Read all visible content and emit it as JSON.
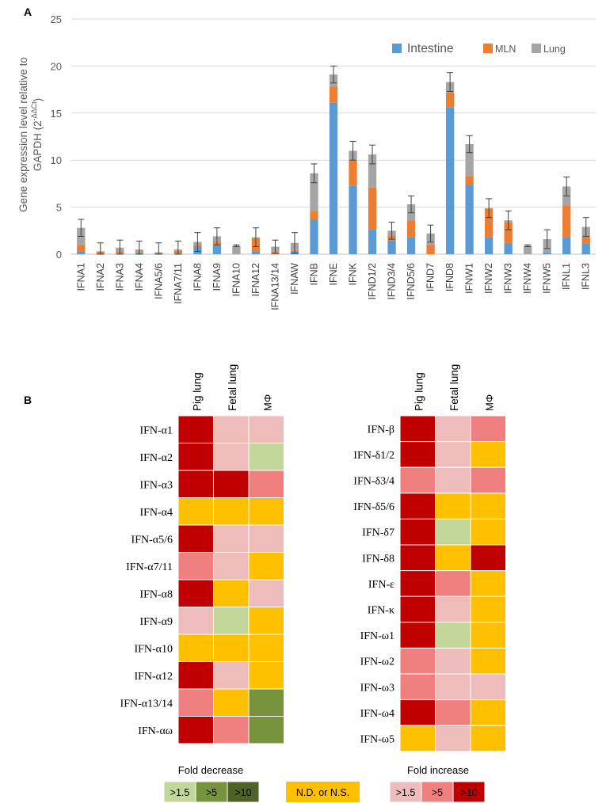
{
  "panel_a": {
    "letter": "A",
    "ylabel_line1": "Gene expression level relative to",
    "ylabel_line2_prefix": "GAPDH (2",
    "ylabel_line2_sup": "-ΔΔCt",
    "ylabel_line2_suffix": ")"
  },
  "chart_data": {
    "type": "bar",
    "stacked": true,
    "title": "",
    "xlabel": "",
    "ylabel": "Gene expression level relative to GAPDH (2^-ΔΔCt)",
    "ylim": [
      0,
      25
    ],
    "yticks": [
      0,
      5,
      10,
      15,
      20,
      25
    ],
    "legend_position": "top-right",
    "categories": [
      "IFNA1",
      "IFNA2",
      "IFNA3",
      "IFNA4",
      "IFNA5/6",
      "IFNA7/11",
      "IFNA8",
      "IFNA9",
      "IFNA10",
      "IFNA12",
      "IFNA13/14",
      "IFNAW",
      "IFNB",
      "IFNE",
      "IFNK",
      "IFND1/2",
      "IFND3/4",
      "IFND5/6",
      "IFND7",
      "IFND8",
      "IFNW1",
      "IFNW2",
      "IFNW3",
      "IFNW4",
      "IFNW5",
      "IFNL1",
      "IFNL3"
    ],
    "series": [
      {
        "name": "Intestine",
        "color": "#5b9bd5",
        "values": [
          0.3,
          0.0,
          0.1,
          0.1,
          0.1,
          0.1,
          0.8,
          1.0,
          0.0,
          0.3,
          0.0,
          0.3,
          3.7,
          16.1,
          7.3,
          2.6,
          1.5,
          1.8,
          0.0,
          15.6,
          7.4,
          1.8,
          1.2,
          0.0,
          0.2,
          1.8,
          1.1
        ]
      },
      {
        "name": "MLN",
        "color": "#ed7d31",
        "values": [
          0.7,
          0.3,
          0.2,
          0.1,
          0.1,
          0.3,
          0.2,
          0.3,
          0.0,
          1.4,
          0.2,
          0.1,
          0.9,
          1.7,
          2.7,
          4.5,
          0.5,
          1.8,
          1.0,
          1.6,
          0.9,
          3.0,
          2.2,
          0.0,
          0.0,
          3.4,
          0.8
        ]
      },
      {
        "name": "Lung",
        "color": "#a5a5a5",
        "values": [
          1.8,
          0.0,
          0.4,
          0.3,
          0.0,
          0.1,
          0.3,
          0.6,
          0.9,
          0.1,
          0.6,
          0.8,
          4.0,
          1.3,
          1.0,
          3.5,
          0.5,
          1.7,
          1.2,
          1.1,
          3.4,
          0.1,
          0.2,
          0.9,
          1.4,
          2.0,
          1.0
        ]
      }
    ],
    "error_bar_top": [
      3.7,
      1.2,
      1.5,
      1.4,
      1.2,
      1.4,
      2.3,
      2.8,
      1.0,
      2.8,
      1.5,
      2.3,
      9.6,
      20.0,
      12.0,
      11.6,
      3.4,
      6.2,
      3.1,
      19.3,
      12.6,
      5.9,
      4.6,
      1.0,
      2.6,
      8.2,
      3.9
    ]
  },
  "panel_b": {
    "letter": "B",
    "col_headers": [
      "Pig  lung",
      "Fetal lung",
      "MΦ"
    ],
    "colors": {
      "dark_red": "#c00000",
      "red": "#f08080",
      "pink": "#efbcbc",
      "orange": "#ffc000",
      "light_green": "#c4d79b",
      "green": "#77933c",
      "dark_green": "#4f6228"
    },
    "heatmap_left": {
      "rows": [
        "IFN-α1",
        "IFN-α2",
        "IFN-α3",
        "IFN-α4",
        "IFN-α5/6",
        "IFN-α7/11",
        "IFN-α8",
        "IFN-α9",
        "IFN-α10",
        "IFN-α12",
        "IFN-α13/14",
        "IFN-αω"
      ],
      "cells": [
        [
          "inc_10",
          "inc_1_5",
          "inc_1_5"
        ],
        [
          "inc_10",
          "inc_1_5",
          "dec_1_5"
        ],
        [
          "inc_10",
          "inc_10",
          "inc_5"
        ],
        [
          "nd",
          "nd",
          "nd"
        ],
        [
          "inc_10",
          "inc_1_5",
          "inc_1_5"
        ],
        [
          "inc_5",
          "inc_1_5",
          "nd"
        ],
        [
          "inc_10",
          "nd",
          "inc_1_5"
        ],
        [
          "inc_1_5",
          "dec_1_5",
          "nd"
        ],
        [
          "nd",
          "nd",
          "nd"
        ],
        [
          "inc_10",
          "inc_1_5",
          "nd"
        ],
        [
          "inc_5",
          "nd",
          "dec_5"
        ],
        [
          "inc_10",
          "inc_5",
          "dec_5"
        ]
      ]
    },
    "heatmap_right": {
      "rows": [
        "IFN-β",
        "IFN-δ1/2",
        "IFN-δ3/4",
        "IFN-δ5/6",
        "IFN-δ7",
        "IFN-δ8",
        "IFN-ε",
        "IFN-κ",
        "IFN-ω1",
        "IFN-ω2",
        "IFN-ω3",
        "IFN-ω4",
        "IFN-ω5"
      ],
      "cells": [
        [
          "inc_10",
          "inc_1_5",
          "inc_5"
        ],
        [
          "inc_10",
          "inc_1_5",
          "nd"
        ],
        [
          "inc_5",
          "inc_1_5",
          "inc_5"
        ],
        [
          "inc_10",
          "nd",
          "nd"
        ],
        [
          "inc_10",
          "dec_1_5",
          "nd"
        ],
        [
          "inc_10",
          "nd",
          "inc_10"
        ],
        [
          "inc_10",
          "inc_5",
          "nd"
        ],
        [
          "inc_10",
          "inc_1_5",
          "nd"
        ],
        [
          "inc_10",
          "dec_1_5",
          "nd"
        ],
        [
          "inc_5",
          "inc_1_5",
          "nd"
        ],
        [
          "inc_5",
          "inc_1_5",
          "inc_1_5"
        ],
        [
          "inc_10",
          "inc_5",
          "nd"
        ],
        [
          "nd",
          "inc_1_5",
          "nd"
        ]
      ]
    },
    "legend": {
      "fold_decrease_title": "Fold decrease",
      "fold_increase_title": "Fold increase",
      "dec_labels": [
        ">1.5",
        ">5",
        ">10"
      ],
      "nd_label": "N.D. or N.S.",
      "inc_labels": [
        ">1.5",
        ">5",
        ">10"
      ]
    }
  }
}
